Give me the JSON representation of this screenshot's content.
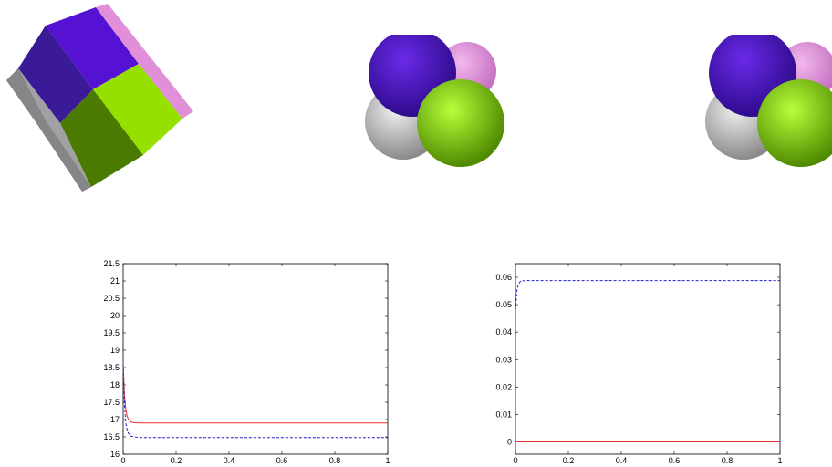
{
  "figure": {
    "renders": [
      "cube-render",
      "sphere-cluster-render",
      "sphere-cluster-render"
    ]
  },
  "chart_data": [
    {
      "type": "line",
      "title": "",
      "xlabel": "",
      "ylabel": "",
      "xlim": [
        0,
        1
      ],
      "ylim": [
        16,
        21.5
      ],
      "xticks": [
        "0",
        "0.2",
        "0.4",
        "0.6",
        "0.8",
        "1"
      ],
      "yticks": [
        "16",
        "16.5",
        "17",
        "17.5",
        "18",
        "18.5",
        "19",
        "19.5",
        "20",
        "20.5",
        "21",
        "21.5"
      ],
      "grid": false,
      "series": [
        {
          "style": "solid",
          "color": "#e8302c",
          "x": [
            0,
            0.005,
            0.01,
            0.015,
            0.02,
            0.03,
            0.04,
            0.06,
            0.1,
            0.3,
            0.6,
            1.0
          ],
          "y": [
            18.6,
            17.7,
            17.3,
            17.1,
            17.0,
            16.93,
            16.91,
            16.9,
            16.9,
            16.9,
            16.9,
            16.9
          ]
        },
        {
          "style": "dashed",
          "color": "#1f1fc8",
          "x": [
            0,
            0.005,
            0.01,
            0.015,
            0.02,
            0.03,
            0.04,
            0.06,
            0.1,
            0.3,
            0.6,
            1.0
          ],
          "y": [
            18.6,
            17.4,
            16.9,
            16.7,
            16.6,
            16.52,
            16.5,
            16.48,
            16.48,
            16.48,
            16.48,
            16.48
          ]
        }
      ]
    },
    {
      "type": "line",
      "title": "",
      "xlabel": "",
      "ylabel": "",
      "xlim": [
        0,
        1
      ],
      "ylim": [
        -0.0045,
        0.065
      ],
      "xticks": [
        "0",
        "0.2",
        "0.4",
        "0.6",
        "0.8",
        "1"
      ],
      "yticks": [
        "0",
        "0.01",
        "0.02",
        "0.03",
        "0.04",
        "0.05",
        "0.06"
      ],
      "grid": false,
      "series": [
        {
          "style": "solid",
          "color": "#e8302c",
          "x": [
            0,
            1.0
          ],
          "y": [
            0,
            0
          ]
        },
        {
          "style": "dashed",
          "color": "#1f1fc8",
          "x": [
            0,
            0.005,
            0.01,
            0.015,
            0.02,
            0.04,
            0.1,
            0.5,
            1.0
          ],
          "y": [
            0.048,
            0.055,
            0.057,
            0.058,
            0.0587,
            0.0588,
            0.0588,
            0.0588,
            0.0588
          ]
        }
      ]
    }
  ]
}
